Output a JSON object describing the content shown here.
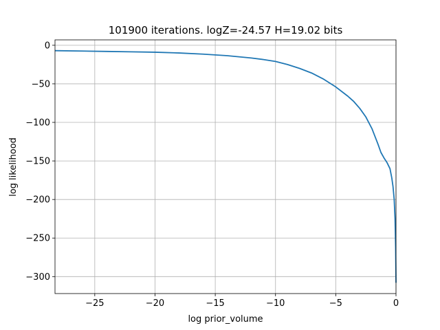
{
  "chart_data": {
    "type": "line",
    "title": "101900 iterations. logZ=-24.57 H=19.02 bits",
    "xlabel": "log prior_volume",
    "ylabel": "log likelihood",
    "xlim": [
      -28.3,
      0
    ],
    "ylim": [
      -322,
      7
    ],
    "grid": true,
    "x_ticks": [
      -25,
      -20,
      -15,
      -10,
      -5,
      0
    ],
    "x_tick_labels": [
      "−25",
      "−20",
      "−15",
      "−10",
      "−5",
      "0"
    ],
    "y_ticks": [
      0,
      -50,
      -100,
      -150,
      -200,
      -250,
      -300
    ],
    "y_tick_labels": [
      "0",
      "−50",
      "−100",
      "−150",
      "−200",
      "−250",
      "−300"
    ],
    "colors": {
      "line": "#1f77b4"
    },
    "series": [
      {
        "x": [
          -28.3,
          -26,
          -24,
          -22,
          -20,
          -18,
          -16,
          -14,
          -12,
          -11,
          -10,
          -9,
          -8,
          -7,
          -6,
          -5,
          -4,
          -3.5,
          -3,
          -2.5,
          -2,
          -1.5,
          -1.25,
          -1,
          -0.75,
          -0.5,
          -0.35,
          -0.25,
          -0.15,
          -0.08,
          -0.03,
          0
        ],
        "y": [
          -7,
          -7.5,
          -8,
          -8.5,
          -9,
          -10,
          -11.5,
          -13.5,
          -16.5,
          -18.5,
          -21,
          -25,
          -30,
          -36,
          -44,
          -54,
          -66,
          -73,
          -82,
          -93,
          -108,
          -128,
          -139,
          -146,
          -152,
          -160,
          -172,
          -183,
          -200,
          -225,
          -262,
          -308
        ]
      }
    ]
  }
}
